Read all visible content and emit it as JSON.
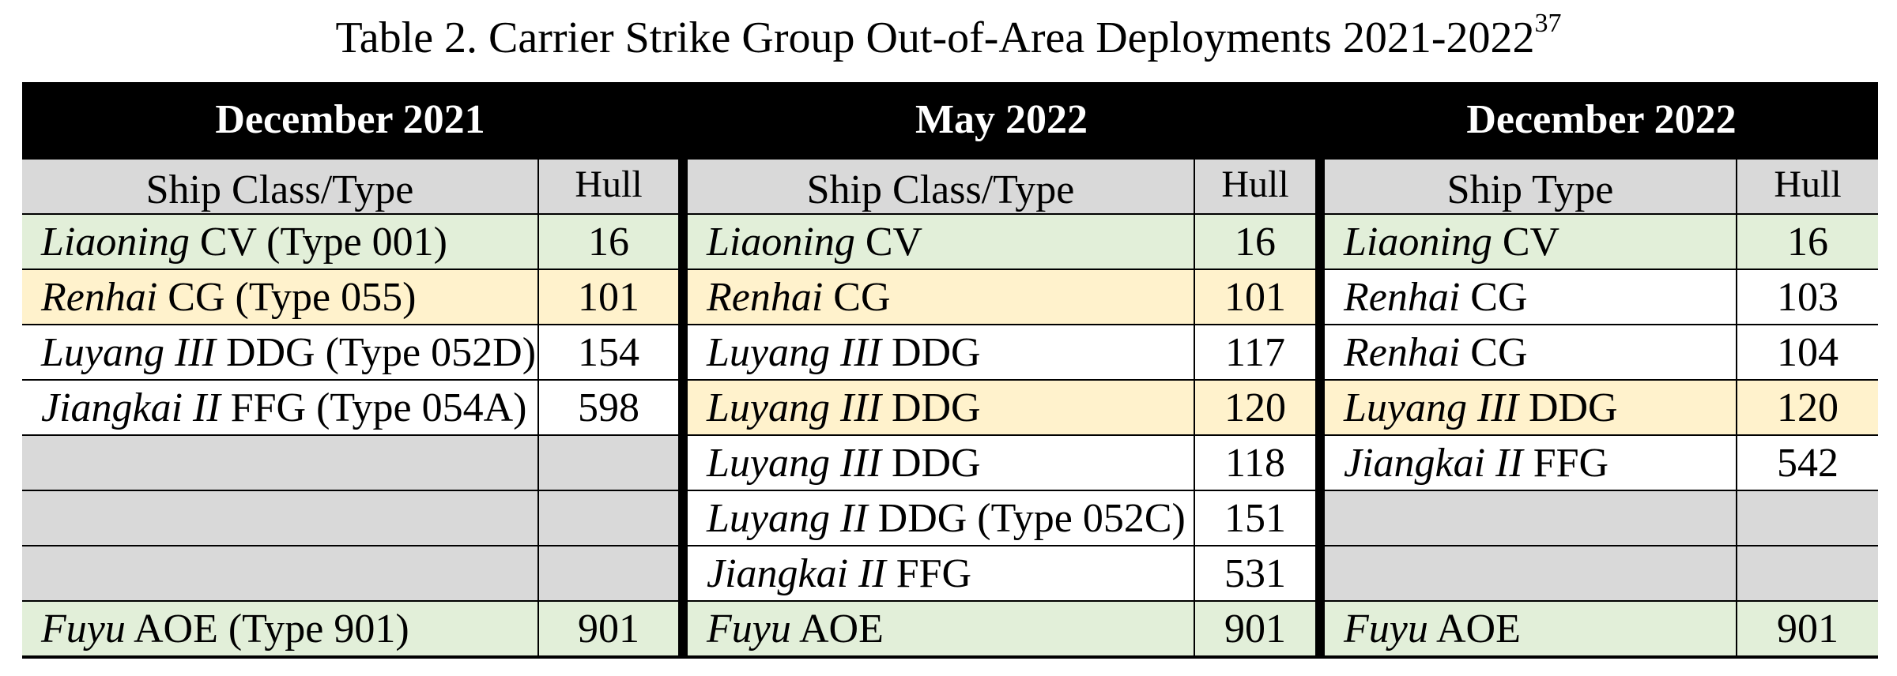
{
  "title": "Table 2. Carrier Strike Group Out-of-Area Deployments 2021-2022",
  "footnote": "37",
  "colors": {
    "header_bg": "#000000",
    "column_header": "#d9d9d9",
    "carrier": "#e2efd9",
    "cruiser": "#fff2cc",
    "empty": "#d9d9d9",
    "plain": "#ffffff"
  },
  "groups": [
    {
      "heading": "December 2021",
      "col_label": "Ship Class/Type",
      "col_hull": "Hull",
      "rows": [
        {
          "name": "Liaoning",
          "rest": " CV (Type 001)",
          "hull": "16",
          "color": "green"
        },
        {
          "name": "Renhai",
          "rest": " CG (Type 055)",
          "hull": "101",
          "color": "yellow"
        },
        {
          "name": "Luyang III",
          "rest": " DDG (Type 052D)",
          "hull": "154",
          "color": "white"
        },
        {
          "name": "Jiangkai II",
          "rest": " FFG (Type 054A)",
          "hull": "598",
          "color": "white"
        },
        {
          "name": "",
          "rest": "",
          "hull": "",
          "color": "gray"
        },
        {
          "name": "",
          "rest": "",
          "hull": "",
          "color": "gray"
        },
        {
          "name": "",
          "rest": "",
          "hull": "",
          "color": "gray"
        },
        {
          "name": "Fuyu",
          "rest": " AOE (Type 901)",
          "hull": "901",
          "color": "green"
        }
      ]
    },
    {
      "heading": "May 2022",
      "col_label": "Ship Class/Type",
      "col_hull": "Hull",
      "rows": [
        {
          "name": "Liaoning",
          "rest": " CV",
          "hull": "16",
          "color": "green"
        },
        {
          "name": "Renhai",
          "rest": " CG",
          "hull": "101",
          "color": "yellow"
        },
        {
          "name": "Luyang III",
          "rest": " DDG",
          "hull": "117",
          "color": "white"
        },
        {
          "name": "Luyang III",
          "rest": " DDG",
          "hull": "120",
          "color": "yellow"
        },
        {
          "name": "Luyang III",
          "rest": " DDG",
          "hull": "118",
          "color": "white"
        },
        {
          "name": "Luyang II",
          "rest": " DDG (Type 052C)",
          "hull": "151",
          "color": "white"
        },
        {
          "name": "Jiangkai II",
          "rest": " FFG",
          "hull": "531",
          "color": "white"
        },
        {
          "name": "Fuyu",
          "rest": " AOE",
          "hull": "901",
          "color": "green"
        }
      ]
    },
    {
      "heading": "December 2022",
      "col_label": "Ship Type",
      "col_hull": "Hull",
      "rows": [
        {
          "name": "Liaoning",
          "rest": " CV",
          "hull": "16",
          "color": "green"
        },
        {
          "name": "Renhai",
          "rest": " CG",
          "hull": "103",
          "color": "white"
        },
        {
          "name": "Renhai",
          "rest": " CG",
          "hull": "104",
          "color": "white"
        },
        {
          "name": "Luyang III",
          "rest": " DDG",
          "hull": "120",
          "color": "yellow"
        },
        {
          "name": "Jiangkai II",
          "rest": " FFG",
          "hull": "542",
          "color": "white"
        },
        {
          "name": "",
          "rest": "",
          "hull": "",
          "color": "gray"
        },
        {
          "name": "",
          "rest": "",
          "hull": "",
          "color": "gray"
        },
        {
          "name": "Fuyu",
          "rest": " AOE",
          "hull": "901",
          "color": "green"
        }
      ]
    }
  ]
}
